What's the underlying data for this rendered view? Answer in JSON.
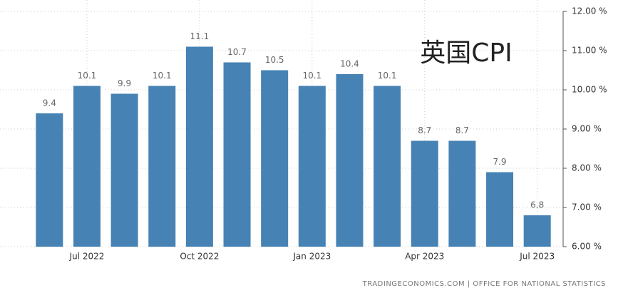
{
  "chart_data": {
    "type": "bar",
    "title": "英国CPI",
    "source": "TRADINGECONOMICS.COM | OFFICE FOR NATIONAL STATISTICS",
    "categories": [
      null,
      "Jul 2022",
      null,
      null,
      "Oct 2022",
      null,
      null,
      "Jan 2023",
      null,
      null,
      "Apr 2023",
      null,
      null,
      "Jul 2023"
    ],
    "values": [
      9.4,
      10.1,
      9.9,
      10.1,
      11.1,
      10.7,
      10.5,
      10.1,
      10.4,
      10.1,
      8.7,
      8.7,
      7.9,
      6.8
    ],
    "color": "#4682b4",
    "ylim": [
      6,
      12
    ],
    "yticks": [
      {
        "value": 6,
        "label": "6.00 %"
      },
      {
        "value": 7,
        "label": "7.00 %"
      },
      {
        "value": 8,
        "label": "8.00 %"
      },
      {
        "value": 9,
        "label": "9.00 %"
      },
      {
        "value": 10,
        "label": "10.00 %"
      },
      {
        "value": 11,
        "label": "11.00 %"
      },
      {
        "value": 12,
        "label": "12.00 %"
      }
    ],
    "grid": true
  }
}
